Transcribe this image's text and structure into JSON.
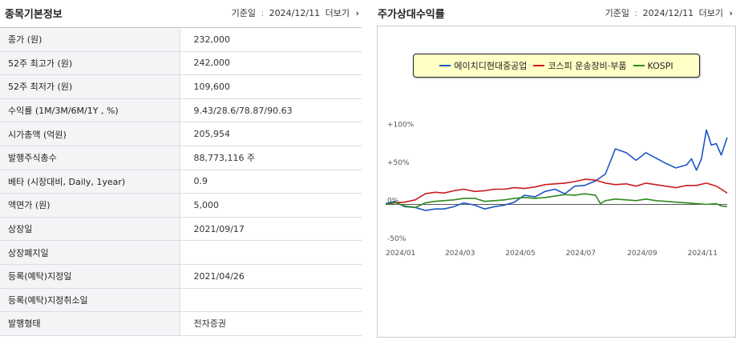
{
  "left": {
    "title": "종목기본정보",
    "ref_label": "기준일",
    "ref_sep": ":",
    "ref_date": "2024/12/11",
    "more_label": "더보기",
    "rows": [
      {
        "label": "종가 (원)",
        "value": "232,000"
      },
      {
        "label": "52주 최고가 (원)",
        "value": "242,000"
      },
      {
        "label": "52주 최저가 (원)",
        "value": "109,600"
      },
      {
        "label": "수익률 (1M/3M/6M/1Y , %)",
        "value": "9.43/28.6/78.87/90.63"
      },
      {
        "label": "시가총액 (억원)",
        "value": "205,954"
      },
      {
        "label": "발행주식총수",
        "value": "88,773,116 주"
      },
      {
        "label": "베타 (시장대비, Daily, 1year)",
        "value": "0.9"
      },
      {
        "label": "액면가 (원)",
        "value": "5,000"
      },
      {
        "label": "상장일",
        "value": "2021/09/17"
      },
      {
        "label": "상장폐지일",
        "value": ""
      },
      {
        "label": "등록(예탁)지정일",
        "value": "2021/04/26"
      },
      {
        "label": "등록(예탁)지정취소일",
        "value": ""
      },
      {
        "label": "발행형태",
        "value": "전자증권"
      }
    ]
  },
  "right": {
    "title": "주가상대수익률",
    "ref_label": "기준일",
    "ref_sep": ":",
    "ref_date": "2024/12/11",
    "more_label": "더보기"
  },
  "chart_data": {
    "type": "line",
    "title": "",
    "xlabel": "",
    "ylabel": "",
    "ylim": [
      -50,
      110
    ],
    "y_ticks": [
      {
        "value": 100,
        "label": "+100%"
      },
      {
        "value": 50,
        "label": "+50%"
      },
      {
        "value": 0,
        "label": "0%"
      },
      {
        "value": -50,
        "label": "-50%"
      }
    ],
    "x_ticks": [
      "2024/01",
      "2024/03",
      "2024/05",
      "2024/07",
      "2024/09",
      "2024/11"
    ],
    "x_tick_values": [
      "2024-01-01",
      "2024-03-01",
      "2024-05-01",
      "2024-07-01",
      "2024-09-01",
      "2024-11-01"
    ],
    "xlim": [
      "2024-01-01",
      "2024-12-11"
    ],
    "grid": false,
    "baseline": 0,
    "legend_position": "top",
    "series": [
      {
        "name": "에이치디현대중공업",
        "color": "#1a56c8",
        "x": [
          "2024-01-01",
          "2024-01-10",
          "2024-01-20",
          "2024-01-31",
          "2024-02-10",
          "2024-02-20",
          "2024-02-29",
          "2024-03-10",
          "2024-03-20",
          "2024-03-31",
          "2024-04-10",
          "2024-04-20",
          "2024-04-30",
          "2024-05-10",
          "2024-05-20",
          "2024-05-31",
          "2024-06-10",
          "2024-06-20",
          "2024-06-30",
          "2024-07-10",
          "2024-07-20",
          "2024-07-31",
          "2024-08-10",
          "2024-08-20",
          "2024-08-31",
          "2024-09-10",
          "2024-09-20",
          "2024-09-30",
          "2024-10-10",
          "2024-10-20",
          "2024-10-31",
          "2024-11-05",
          "2024-11-10",
          "2024-11-15",
          "2024-11-20",
          "2024-11-25",
          "2024-11-30",
          "2024-12-05",
          "2024-12-11"
        ],
        "values": [
          1,
          4,
          -3,
          -4,
          -8,
          -6,
          -6,
          -3,
          2,
          -1,
          -6,
          -3,
          -1,
          3,
          12,
          10,
          17,
          20,
          14,
          24,
          25,
          31,
          40,
          73,
          68,
          58,
          68,
          61,
          54,
          48,
          52,
          60,
          45,
          60,
          98,
          78,
          80,
          65,
          88
        ]
      },
      {
        "name": "코스피 운송장비·부품",
        "color": "#c81e1e",
        "x": [
          "2024-01-01",
          "2024-01-10",
          "2024-01-20",
          "2024-01-31",
          "2024-02-10",
          "2024-02-20",
          "2024-02-29",
          "2024-03-10",
          "2024-03-20",
          "2024-03-31",
          "2024-04-10",
          "2024-04-20",
          "2024-04-30",
          "2024-05-10",
          "2024-05-20",
          "2024-05-31",
          "2024-06-10",
          "2024-06-20",
          "2024-06-30",
          "2024-07-10",
          "2024-07-20",
          "2024-07-31",
          "2024-08-10",
          "2024-08-20",
          "2024-08-31",
          "2024-09-10",
          "2024-09-20",
          "2024-09-30",
          "2024-10-10",
          "2024-10-20",
          "2024-10-31",
          "2024-11-10",
          "2024-11-20",
          "2024-11-30",
          "2024-12-05",
          "2024-12-11"
        ],
        "values": [
          0,
          2,
          3,
          6,
          14,
          16,
          15,
          18,
          20,
          17,
          18,
          20,
          20,
          22,
          21,
          23,
          26,
          27,
          28,
          30,
          33,
          32,
          28,
          26,
          27,
          24,
          28,
          26,
          24,
          22,
          25,
          25,
          28,
          24,
          20,
          15
        ]
      },
      {
        "name": "KOSPI",
        "color": "#2e8a1e",
        "x": [
          "2024-01-01",
          "2024-01-10",
          "2024-01-20",
          "2024-01-31",
          "2024-02-10",
          "2024-02-20",
          "2024-02-29",
          "2024-03-10",
          "2024-03-20",
          "2024-03-31",
          "2024-04-10",
          "2024-04-20",
          "2024-04-30",
          "2024-05-10",
          "2024-05-20",
          "2024-05-31",
          "2024-06-10",
          "2024-06-20",
          "2024-06-30",
          "2024-07-10",
          "2024-07-20",
          "2024-07-31",
          "2024-08-05",
          "2024-08-10",
          "2024-08-20",
          "2024-08-31",
          "2024-09-10",
          "2024-09-20",
          "2024-09-30",
          "2024-10-10",
          "2024-10-20",
          "2024-10-31",
          "2024-11-10",
          "2024-11-20",
          "2024-11-30",
          "2024-12-05",
          "2024-12-11"
        ],
        "values": [
          0,
          3,
          -2,
          -4,
          2,
          4,
          5,
          6,
          8,
          8,
          4,
          5,
          6,
          8,
          9,
          8,
          9,
          11,
          13,
          12,
          14,
          12,
          1,
          5,
          7,
          6,
          5,
          7,
          5,
          4,
          3,
          2,
          1,
          0,
          1,
          -2,
          -3
        ]
      }
    ]
  }
}
